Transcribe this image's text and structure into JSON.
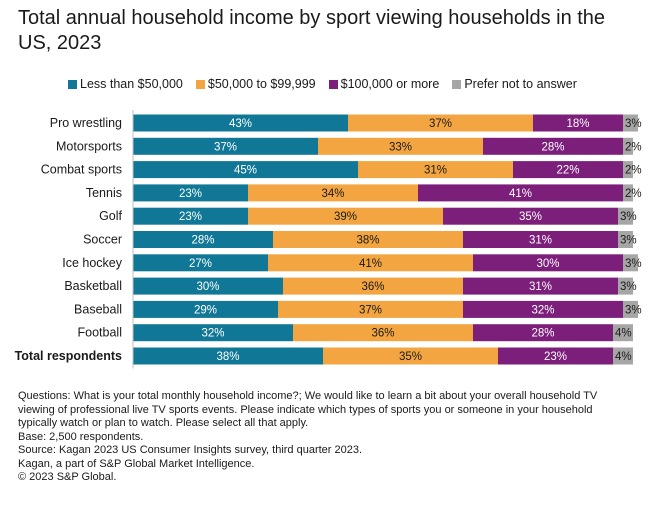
{
  "chart_data": {
    "type": "bar",
    "orientation": "horizontal",
    "stacked": true,
    "title": "Total annual household income by sport viewing households in the US, 2023",
    "categories": [
      "Pro wrestling",
      "Motorsports",
      "Combat sports",
      "Tennis",
      "Golf",
      "Soccer",
      "Ice hockey",
      "Basketball",
      "Baseball",
      "Football",
      "Total respondents"
    ],
    "bold_categories": [
      "Total respondents"
    ],
    "series": [
      {
        "name": "Less than $50,000",
        "color": "#107896",
        "label_color": "#ffffff",
        "values": [
          43,
          37,
          45,
          23,
          23,
          28,
          27,
          30,
          29,
          32,
          38
        ]
      },
      {
        "name": "$50,000 to $99,999",
        "color": "#f2a541",
        "label_color": "#1a1a1a",
        "values": [
          37,
          33,
          31,
          34,
          39,
          38,
          41,
          36,
          37,
          36,
          35
        ]
      },
      {
        "name": "$100,000 or more",
        "color": "#7b1f7b",
        "label_color": "#ffffff",
        "values": [
          18,
          28,
          22,
          41,
          35,
          31,
          30,
          31,
          32,
          28,
          23
        ]
      },
      {
        "name": "Prefer not to answer",
        "color": "#a6a6a6",
        "label_color": "#1a1a1a",
        "values": [
          3,
          2,
          2,
          2,
          3,
          3,
          3,
          3,
          3,
          4,
          4
        ]
      }
    ],
    "value_suffix": "%",
    "xlim": [
      0,
      100
    ],
    "legend_position": "top"
  },
  "notes": {
    "question_line1": "Questions: What is your total monthly household income?; We would like to learn a bit about your overall household TV",
    "question_line2": "viewing of professional live TV sports events. Please indicate which types of sports you or someone in your household",
    "question_line3": "typically watch or plan to watch. Please select all that apply.",
    "base": "Base: 2,500 respondents.",
    "source": "Source:  Kagan 2023 US Consumer Insights survey, third quarter 2023.",
    "kagan": "Kagan, a part of S&P Global Market Intelligence.",
    "copyright": "© 2023 S&P Global."
  }
}
